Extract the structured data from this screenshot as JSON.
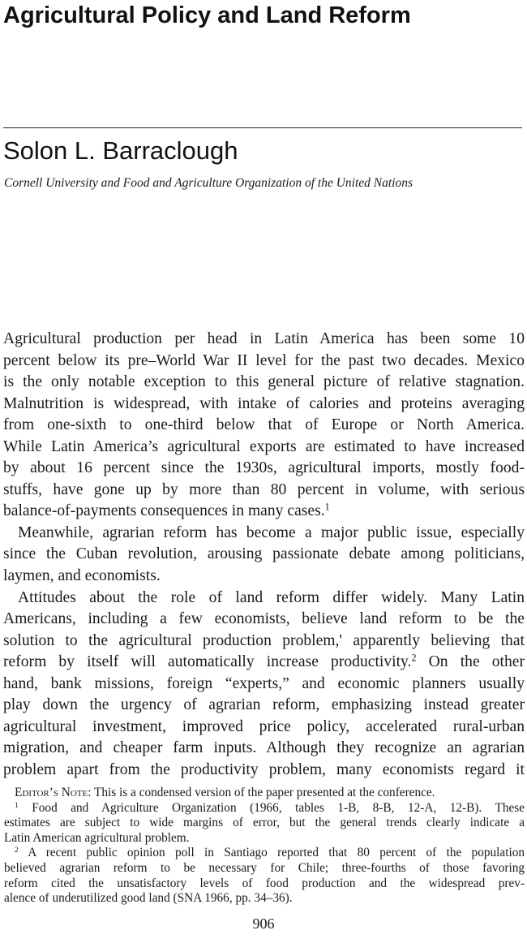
{
  "header": {
    "title": "Agricultural Policy and Land Reform",
    "author": "Solon L. Barraclough",
    "affiliation": "Cornell University and Food and Agriculture Organization of the United Nations"
  },
  "body": {
    "lines": [
      "Agricultural production per head in Latin America has been some 10",
      "percent below its pre–World War II level for the past two decades. Mexico",
      "is the only notable exception to this general picture of relative stagnation.",
      "Malnutrition is widespread, with intake of calories and proteins averaging",
      "from one-sixth to one-third below that of Europe or North America.",
      "While Latin America’s agricultural exports are estimated to have increased",
      "by about 16 percent since the 1930s, agricultural imports, mostly food-",
      "stuffs, have gone up by more than 80 percent in volume, with serious",
      "balance-of-payments consequences in many cases.",
      "Meanwhile, agrarian reform has become a major public issue, especially",
      "since the Cuban revolution, arousing passionate debate among politicians,",
      "laymen, and economists.",
      "Attitudes about the role of land reform differ widely. Many Latin",
      "Americans, including a few economists, believe land reform to be the",
      "solution to the agricultural production problem,' apparently believing that",
      "reform by itself will automatically increase productivity.",
      " On the other",
      "hand, bank missions, foreign “experts,” and economic planners usually",
      "play down the urgency of agrarian reform, emphasizing instead greater",
      "agricultural investment, improved price policy, accelerated rural-urban",
      "migration, and cheaper farm inputs. Although they recognize an agrarian",
      "problem apart from the productivity problem, many economists regard it"
    ],
    "footnote_markers": [
      "1",
      "2"
    ]
  },
  "footnotes": {
    "editor_note_label": "Editor’s Note",
    "editor_note_text": ": This is a condensed version of the paper presented at the conference.",
    "note1_lines": [
      "Food and Agriculture Organization (1966, tables 1-B, 8-B, 12-A, 12-B). These",
      "estimates are subject to wide margins of error, but the general trends clearly indicate a",
      "Latin American agricultural problem."
    ],
    "note2_lines": [
      "A recent public opinion poll in Santiago reported that 80 percent of the population",
      "believed agrarian reform to be necessary for Chile; three-fourths of those favoring",
      "reform cited the unsatisfactory levels of food production and the widespread prev-",
      "alence of underutilized good land (SNA 1966, pp. 34–36)."
    ],
    "note1_marker": "1",
    "note2_marker": "2"
  },
  "page_number": "906"
}
